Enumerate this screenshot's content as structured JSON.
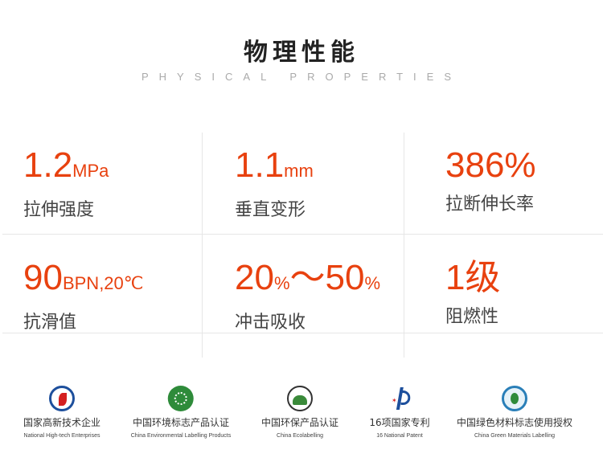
{
  "header": {
    "title": "物理性能",
    "subtitle": "PHYSICAL PROPERTIES"
  },
  "properties": [
    {
      "value": "1.2",
      "unit": "MPa",
      "label": "拉伸强度"
    },
    {
      "value": "1.1",
      "unit": "mm",
      "label": "垂直变形"
    },
    {
      "value": "386%",
      "unit": "",
      "label": "拉断伸长率"
    },
    {
      "value": "90",
      "unit": "BPN,20℃",
      "label": "抗滑值"
    },
    {
      "value": "20",
      "unit": "%",
      "value2": "～50",
      "unit2": "%",
      "label": "冲击吸收"
    },
    {
      "value": "1级",
      "unit": "",
      "label": "阻燃性"
    }
  ],
  "certifications": [
    {
      "cn": "国家高新技术企业",
      "en": "National High-tech Enterprises",
      "icon": "high-tech-enterprise-logo",
      "color": "#1d4f9c"
    },
    {
      "cn": "中国环境标志产品认证",
      "en": "China Environmental Labelling Products",
      "icon": "environmental-label-logo",
      "color": "#2e8b3a"
    },
    {
      "cn": "中国环保产品认证",
      "en": "China Ecolabelling",
      "icon": "ecolabel-logo",
      "color": "#3a8a3a"
    },
    {
      "cn": "16项国家专利",
      "en": "16 National Patent",
      "icon": "patent-logo",
      "color": "#d42020"
    },
    {
      "cn": "中国绿色材料标志使用授权",
      "en": "China Green Materials Labelling",
      "icon": "green-materials-logo",
      "color": "#2a7fb8"
    }
  ],
  "accent_color": "#e8410f"
}
